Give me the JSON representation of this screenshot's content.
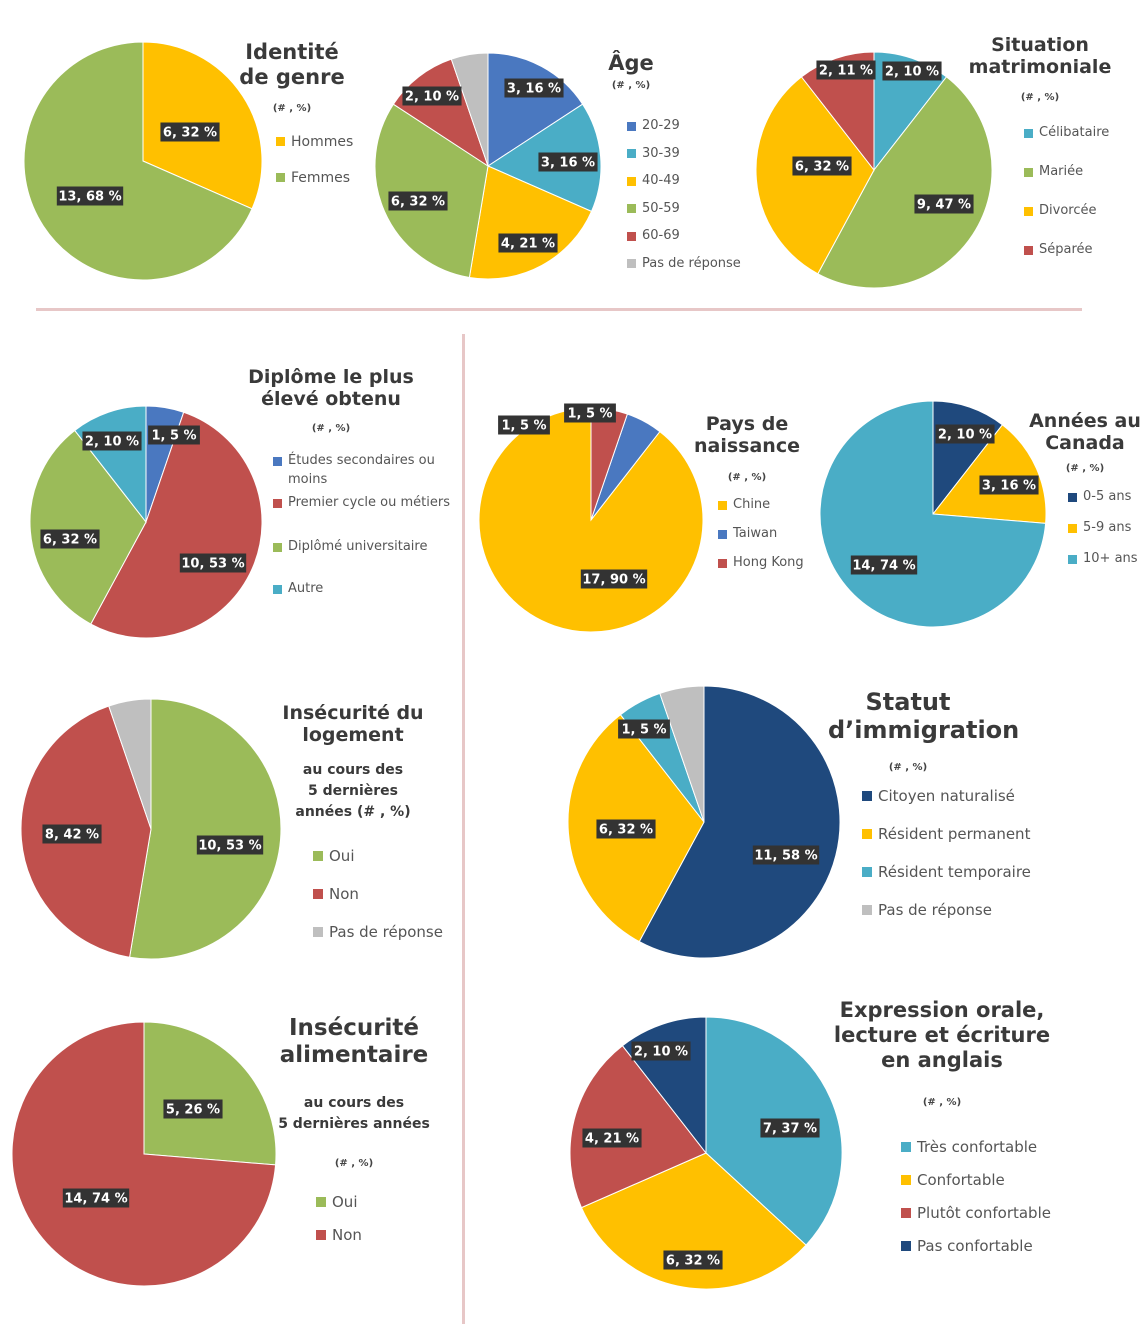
{
  "colors": {
    "blue": "#4A78C0",
    "teal": "#4AADC6",
    "yellow": "#FFC000",
    "green": "#9BBB59",
    "red": "#C0504D",
    "gray": "#BFBFBF",
    "navy": "#1F497D"
  },
  "chart_data": [
    {
      "id": "genre",
      "type": "pie",
      "title": "Identité de genre",
      "units": "(# , %)",
      "slices": [
        {
          "name": "Hommes",
          "count": 6,
          "percent": 32,
          "label": "6, 32 %",
          "color": "yellow"
        },
        {
          "name": "Femmes",
          "count": 13,
          "percent": 68,
          "label": "13, 68 %",
          "color": "green"
        }
      ]
    },
    {
      "id": "age",
      "type": "pie",
      "title": "Âge",
      "units": "(# , %)",
      "slices": [
        {
          "name": "20-29",
          "count": 3,
          "percent": 16,
          "label": "3, 16 %",
          "color": "blue"
        },
        {
          "name": "30-39",
          "count": 3,
          "percent": 16,
          "label": "3, 16 %",
          "color": "teal"
        },
        {
          "name": "40-49",
          "count": 4,
          "percent": 21,
          "label": "4, 21 %",
          "color": "yellow"
        },
        {
          "name": "50-59",
          "count": 6,
          "percent": 32,
          "label": "6, 32 %",
          "color": "green"
        },
        {
          "name": "60-69",
          "count": 2,
          "percent": 10,
          "label": "2, 10 %",
          "color": "red"
        },
        {
          "name": "Pas de réponse",
          "count": 1,
          "percent": 5,
          "label": "",
          "color": "gray"
        }
      ]
    },
    {
      "id": "matrimoniale",
      "type": "pie",
      "title": "Situation matrimoniale",
      "units": "(# , %)",
      "slices": [
        {
          "name": "Célibataire",
          "count": 2,
          "percent": 10,
          "label": "2, 10 %",
          "color": "teal"
        },
        {
          "name": "Mariée",
          "count": 9,
          "percent": 47,
          "label": "9, 47 %",
          "color": "green"
        },
        {
          "name": "Divorcée",
          "count": 6,
          "percent": 32,
          "label": "6, 32 %",
          "color": "yellow"
        },
        {
          "name": "Séparée",
          "count": 2,
          "percent": 11,
          "label": "2, 11 %",
          "color": "red"
        }
      ]
    },
    {
      "id": "diplome",
      "type": "pie",
      "title": "Diplôme le plus élevé obtenu",
      "units": "(# , %)",
      "slices": [
        {
          "name": "Études secondaires ou moins",
          "count": 1,
          "percent": 5,
          "label": "1, 5 %",
          "color": "blue"
        },
        {
          "name": "Premier cycle ou métiers",
          "count": 10,
          "percent": 53,
          "label": "10, 53 %",
          "color": "red"
        },
        {
          "name": "Diplômé universitaire",
          "count": 6,
          "percent": 32,
          "label": "6, 32 %",
          "color": "green"
        },
        {
          "name": "Autre",
          "count": 2,
          "percent": 10,
          "label": "2, 10 %",
          "color": "teal"
        }
      ]
    },
    {
      "id": "pays",
      "type": "pie",
      "title": "Pays de naissance",
      "units": "(# , %)",
      "slices": [
        {
          "name": "Chine",
          "count": 17,
          "percent": 90,
          "label": "17, 90 %",
          "color": "yellow"
        },
        {
          "name": "Taiwan",
          "count": 1,
          "percent": 5,
          "label": "1, 5 %",
          "color": "blue"
        },
        {
          "name": "Hong Kong",
          "count": 1,
          "percent": 5,
          "label": "1, 5 %",
          "color": "red"
        }
      ]
    },
    {
      "id": "annees",
      "type": "pie",
      "title": "Années au Canada",
      "units": "(# , %)",
      "slices": [
        {
          "name": "0-5 ans",
          "count": 2,
          "percent": 10,
          "label": "2, 10 %",
          "color": "navy"
        },
        {
          "name": "5-9 ans",
          "count": 3,
          "percent": 16,
          "label": "3, 16 %",
          "color": "yellow"
        },
        {
          "name": "10+ ans",
          "count": 14,
          "percent": 74,
          "label": "14, 74 %",
          "color": "teal"
        }
      ]
    },
    {
      "id": "logement",
      "type": "pie",
      "title": "Insécurité du logement",
      "subtitle": "au cours des 5 dernières années",
      "units": "(# , %)",
      "slices": [
        {
          "name": "Oui",
          "count": 10,
          "percent": 53,
          "label": "10, 53 %",
          "color": "green"
        },
        {
          "name": "Non",
          "count": 8,
          "percent": 42,
          "label": "8, 42 %",
          "color": "red"
        },
        {
          "name": "Pas de réponse",
          "count": 1,
          "percent": 5,
          "label": "",
          "color": "gray"
        }
      ]
    },
    {
      "id": "immigration",
      "type": "pie",
      "title": "Statut d’immigration",
      "units": "(# , %)",
      "slices": [
        {
          "name": "Citoyen naturalisé",
          "count": 11,
          "percent": 58,
          "label": "11, 58 %",
          "color": "navy"
        },
        {
          "name": "Résident permanent",
          "count": 6,
          "percent": 32,
          "label": "6, 32 %",
          "color": "yellow"
        },
        {
          "name": "Résident temporaire",
          "count": 1,
          "percent": 5,
          "label": "1, 5 %",
          "color": "teal"
        },
        {
          "name": "Pas de réponse",
          "count": 1,
          "percent": 5,
          "label": "",
          "color": "gray"
        }
      ]
    },
    {
      "id": "alimentaire",
      "type": "pie",
      "title": "Insécurité alimentaire",
      "subtitle": "au cours des 5 dernières années",
      "units": "(# , %)",
      "slices": [
        {
          "name": "Oui",
          "count": 5,
          "percent": 26,
          "label": "5, 26 %",
          "color": "green"
        },
        {
          "name": "Non",
          "count": 14,
          "percent": 74,
          "label": "14, 74 %",
          "color": "red"
        }
      ]
    },
    {
      "id": "anglais",
      "type": "pie",
      "title": "Expression orale, lecture et écriture en anglais",
      "units": "(# , %)",
      "slices": [
        {
          "name": "Très confortable",
          "count": 7,
          "percent": 37,
          "label": "7, 37 %",
          "color": "teal"
        },
        {
          "name": "Confortable",
          "count": 6,
          "percent": 32,
          "label": "6, 32 %",
          "color": "yellow"
        },
        {
          "name": "Plutôt confortable",
          "count": 4,
          "percent": 21,
          "label": "4, 21 %",
          "color": "red"
        },
        {
          "name": "Pas confortable",
          "count": 2,
          "percent": 10,
          "label": "2, 10 %",
          "color": "navy"
        }
      ]
    }
  ]
}
